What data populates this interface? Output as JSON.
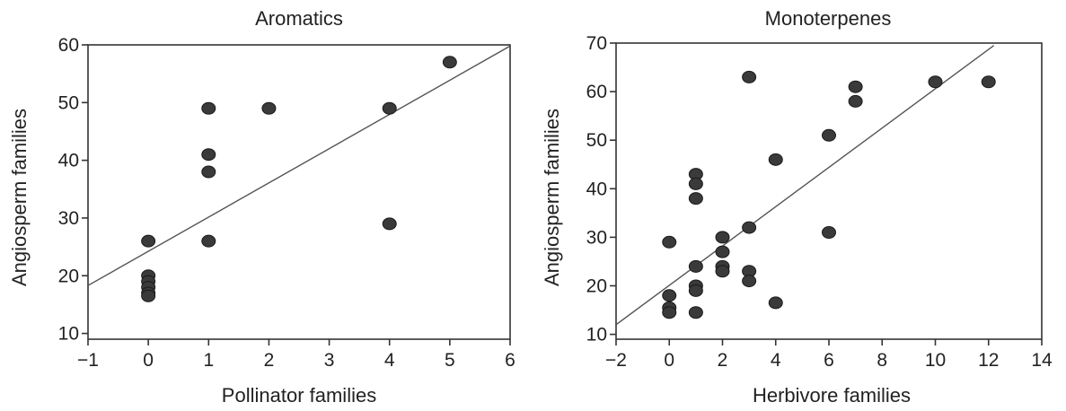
{
  "chart_data": [
    {
      "type": "scatter",
      "title": "Aromatics",
      "xlabel": "Pollinator families",
      "ylabel": "Angiosperm families",
      "xlim": [
        -1,
        6
      ],
      "ylim": [
        9,
        60
      ],
      "xticks": [
        -1,
        0,
        1,
        2,
        3,
        4,
        5,
        6
      ],
      "yticks": [
        10,
        20,
        30,
        40,
        50,
        60
      ],
      "x": [
        0,
        0,
        0,
        0,
        0,
        0,
        1,
        1,
        1,
        1,
        2,
        4,
        4,
        5
      ],
      "y": [
        26,
        20,
        19,
        18,
        17,
        16.5,
        49,
        41,
        38,
        26,
        49,
        49,
        29,
        57
      ],
      "fit_line": {
        "x": [
          -1,
          6
        ],
        "y": [
          18.3,
          59.8
        ]
      },
      "grid": false,
      "point_color": "#3a3a3a"
    },
    {
      "type": "scatter",
      "title": "Monoterpenes",
      "xlabel": "Herbivore families",
      "ylabel": "Angiosperm families",
      "xlim": [
        -2,
        14
      ],
      "ylim": [
        9,
        70
      ],
      "xticks": [
        -2,
        0,
        2,
        4,
        6,
        8,
        10,
        12,
        14
      ],
      "yticks": [
        10,
        20,
        30,
        40,
        50,
        60,
        70
      ],
      "x": [
        0,
        0,
        0,
        0,
        1,
        1,
        1,
        1,
        1,
        1,
        1,
        2,
        2,
        2,
        2,
        3,
        3,
        3,
        3,
        4,
        4,
        6,
        6,
        7,
        7,
        10,
        12
      ],
      "y": [
        29,
        18,
        15.5,
        14.5,
        43,
        41,
        38,
        24,
        20,
        19,
        14.5,
        30,
        27,
        24,
        23,
        63,
        32,
        23,
        21,
        46,
        16.5,
        51,
        31,
        61,
        58,
        62,
        62
      ],
      "fit_line": {
        "x": [
          -2,
          12.2
        ],
        "y": [
          12,
          69.5
        ]
      },
      "grid": false,
      "point_color": "#3a3a3a"
    }
  ]
}
